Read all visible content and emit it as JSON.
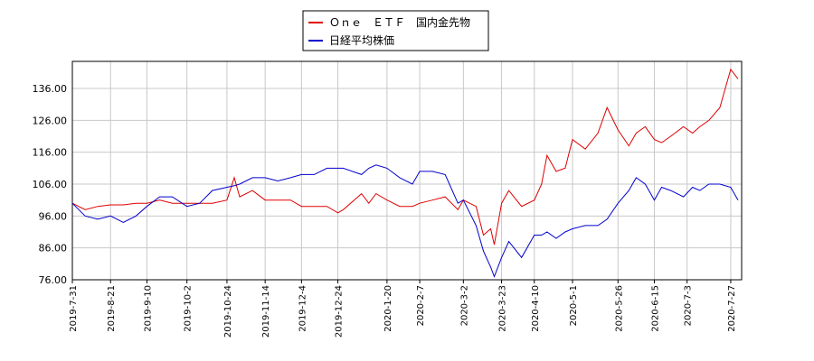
{
  "chart_data": {
    "type": "line",
    "x": [
      "2019-7-31",
      "2019-8-7",
      "2019-8-14",
      "2019-8-21",
      "2019-8-28",
      "2019-9-4",
      "2019-9-10",
      "2019-9-17",
      "2019-9-24",
      "2019-10-2",
      "2019-10-9",
      "2019-10-16",
      "2019-10-24",
      "2019-10-28",
      "2019-10-31",
      "2019-11-7",
      "2019-11-14",
      "2019-11-21",
      "2019-11-28",
      "2019-12-4",
      "2019-12-11",
      "2019-12-18",
      "2019-12-24",
      "2019-12-27",
      "2020-1-6",
      "2020-1-10",
      "2020-1-14",
      "2020-1-20",
      "2020-1-27",
      "2020-2-3",
      "2020-2-7",
      "2020-2-14",
      "2020-2-21",
      "2020-2-28",
      "2020-3-2",
      "2020-3-9",
      "2020-3-13",
      "2020-3-17",
      "2020-3-19",
      "2020-3-23",
      "2020-3-27",
      "2020-4-3",
      "2020-4-10",
      "2020-4-14",
      "2020-4-17",
      "2020-4-22",
      "2020-4-27",
      "2020-5-1",
      "2020-5-8",
      "2020-5-15",
      "2020-5-20",
      "2020-5-26",
      "2020-6-1",
      "2020-6-5",
      "2020-6-10",
      "2020-6-15",
      "2020-6-19",
      "2020-6-24",
      "2020-7-1",
      "2020-7-6",
      "2020-7-10",
      "2020-7-15",
      "2020-7-21",
      "2020-7-27",
      "2020-7-31"
    ],
    "series": [
      {
        "name": "Ｏｎｅ　ＥＴＦ　国内金先物",
        "color": "#dd0000",
        "values": [
          100,
          98,
          99,
          99.5,
          99.5,
          100,
          100,
          101,
          100,
          100,
          100,
          100,
          101,
          108,
          102,
          104,
          101,
          101,
          101,
          99,
          99,
          99,
          97,
          98,
          103,
          100,
          103,
          101,
          99,
          99,
          100,
          101,
          102,
          98,
          101,
          99,
          90,
          92,
          87,
          100,
          104,
          99,
          101,
          106,
          115,
          110,
          111,
          120,
          117,
          122,
          130,
          123,
          118,
          122,
          124,
          120,
          119,
          121,
          124,
          122,
          124,
          126,
          130,
          142,
          139
        ]
      },
      {
        "name": "日経平均株価",
        "color": "#0000cc",
        "values": [
          100,
          96,
          95,
          96,
          94,
          96,
          99,
          102,
          102,
          99,
          100,
          104,
          105,
          105.5,
          106,
          108,
          108,
          107,
          108,
          109,
          109,
          111,
          111,
          111,
          109,
          111,
          112,
          111,
          108,
          106,
          110,
          110,
          109,
          100,
          101,
          93,
          85,
          80,
          77,
          83,
          88,
          83,
          90,
          90,
          91,
          89,
          91,
          92,
          93,
          93,
          95,
          100,
          104,
          108,
          106,
          101,
          105,
          104,
          102,
          105,
          104,
          106,
          106,
          105,
          101
        ]
      }
    ],
    "xlim": [
      "2019-7-31",
      "2020-8-2"
    ],
    "xticks": [
      "2019-7-31",
      "2019-8-21",
      "2019-9-10",
      "2019-10-2",
      "2019-10-24",
      "2019-11-14",
      "2019-12-4",
      "2019-12-24",
      "2020-1-20",
      "2020-2-7",
      "2020-3-2",
      "2020-3-23",
      "2020-4-10",
      "2020-5-1",
      "2020-5-26",
      "2020-6-15",
      "2020-7-3",
      "2020-7-27"
    ],
    "ylim": [
      76,
      144.5
    ],
    "yticks": [
      {
        "value": 76,
        "label": "76.00"
      },
      {
        "value": 86,
        "label": "86.00"
      },
      {
        "value": 96,
        "label": "96.00"
      },
      {
        "value": 106,
        "label": "106.00"
      },
      {
        "value": 116,
        "label": "116.00"
      },
      {
        "value": 126,
        "label": "126.00"
      },
      {
        "value": 136,
        "label": "136.00"
      }
    ],
    "grid": true,
    "legend": "top"
  }
}
